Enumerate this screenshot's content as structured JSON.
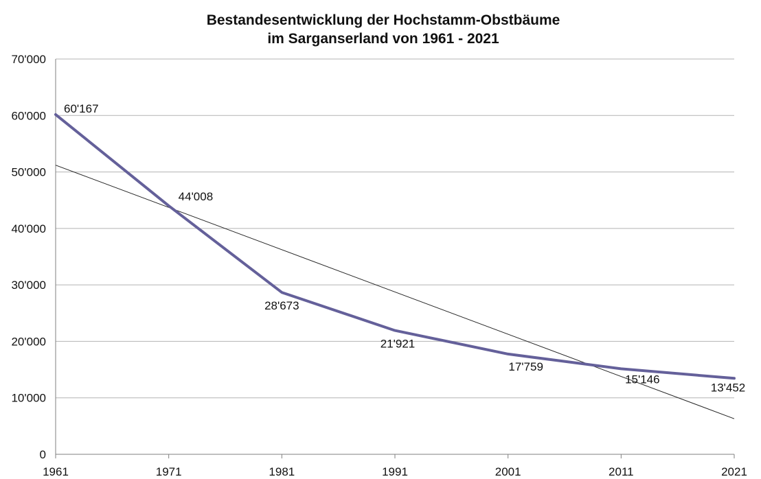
{
  "chart_data": {
    "type": "line",
    "title_lines": [
      "Bestandesentwicklung der Hochstamm-Obstbäume",
      "im Sarganserland von 1961 - 2021"
    ],
    "x": [
      1961,
      1971,
      1981,
      1991,
      2001,
      2011,
      2021
    ],
    "series": [
      {
        "values": [
          60167,
          44008,
          28673,
          21921,
          17759,
          15146,
          13452
        ],
        "value_labels": [
          "60'167",
          "44'008",
          "28'673",
          "21'921",
          "17'759",
          "15'146",
          "13'452"
        ],
        "color": "#64609a"
      }
    ],
    "trendline": {
      "start": [
        1961,
        51200
      ],
      "end": [
        2021,
        6300
      ],
      "color": "#222222"
    },
    "ylim": [
      0,
      70000
    ],
    "yticks": [
      0,
      10000,
      20000,
      30000,
      40000,
      50000,
      60000,
      70000
    ],
    "ytick_labels": [
      "0",
      "10'000",
      "20'000",
      "30'000",
      "40'000",
      "50'000",
      "60'000",
      "70'000"
    ],
    "xtick_labels": [
      "1961",
      "1971",
      "1981",
      "1991",
      "2001",
      "2011",
      "2021"
    ],
    "grid": true,
    "gridline_color": "#b3b3b3",
    "axis_color": "#7f7f7f"
  }
}
